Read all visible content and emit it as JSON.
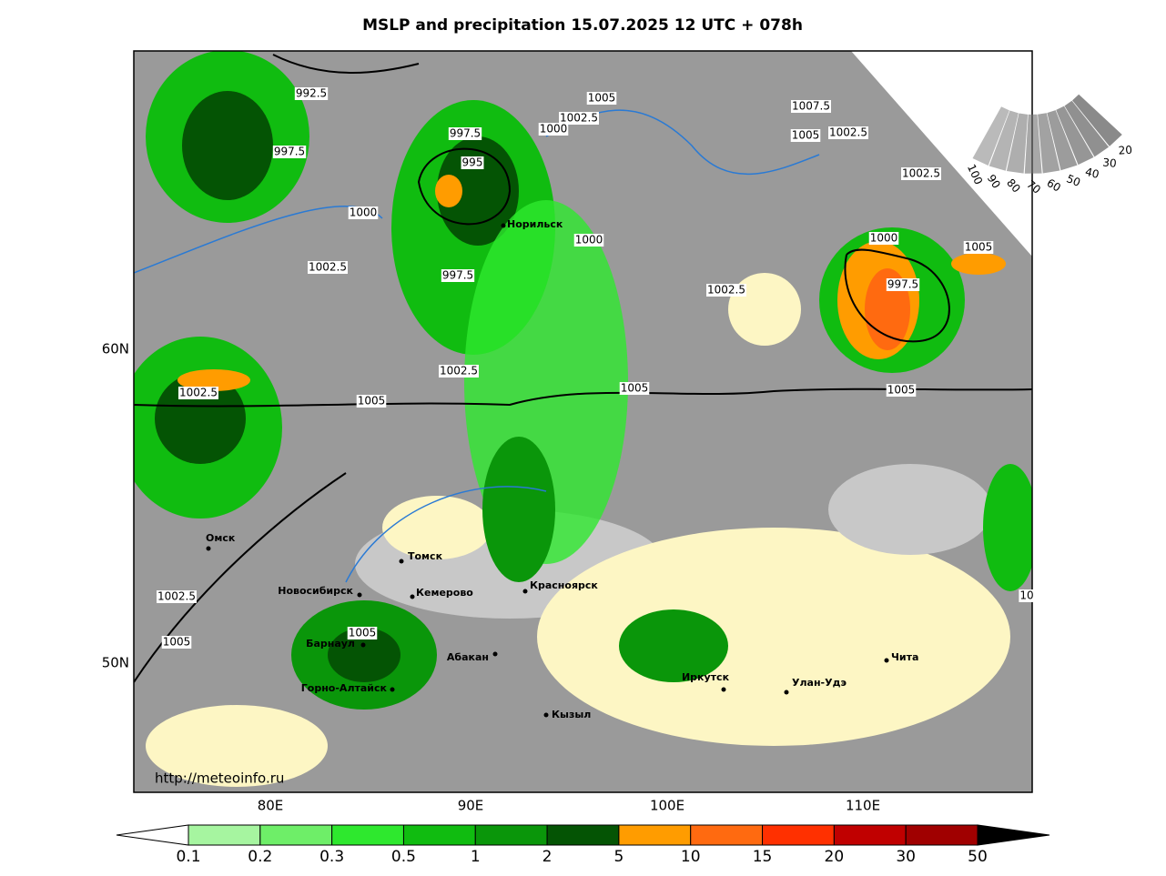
{
  "header": {
    "title": "MSLP and precipitation 15.07.2025 12 UTC + 078h"
  },
  "map": {
    "lat_labels": [
      "60N",
      "50N"
    ],
    "lon_labels": [
      "80E",
      "90E",
      "100E",
      "110E"
    ],
    "isobar_labels": [
      "992.5",
      "997.5",
      "997.5",
      "995",
      "1000",
      "1002.5",
      "997.5",
      "1005",
      "1002.5",
      "1000",
      "1000",
      "1002.5",
      "1007.5",
      "1005",
      "1002.5",
      "1002.5",
      "1000",
      "997.5",
      "1005",
      "1002.5",
      "1005",
      "1005",
      "1005",
      "1002.5",
      "1002.5",
      "1005",
      "1005",
      "10"
    ],
    "cities": [
      {
        "name": "Норильск"
      },
      {
        "name": "Омск"
      },
      {
        "name": "Томск"
      },
      {
        "name": "Новосибирск"
      },
      {
        "name": "Кемерово"
      },
      {
        "name": "Красноярск"
      },
      {
        "name": "Барнаул"
      },
      {
        "name": "Абакан"
      },
      {
        "name": "Горно-Алтайск"
      },
      {
        "name": "Кызыл"
      },
      {
        "name": "Иркутск"
      },
      {
        "name": "Улан-Удэ"
      },
      {
        "name": "Чита"
      }
    ],
    "source": "http://meteoinfo.ru"
  },
  "cloud_scale": {
    "labels": [
      100,
      90,
      80,
      70,
      60,
      50,
      40,
      30,
      20
    ]
  },
  "colorbar": {
    "ticks": [
      0.1,
      0.2,
      0.3,
      0.5,
      1,
      2,
      5,
      10,
      15,
      20,
      30,
      50
    ],
    "colors": [
      "#a6f5a0",
      "#6eee68",
      "#2ee82e",
      "#10bc10",
      "#0a960a",
      "#045404",
      "#ff9c00",
      "#ff6a10",
      "#ff3000",
      "#c00000",
      "#a00000"
    ]
  }
}
